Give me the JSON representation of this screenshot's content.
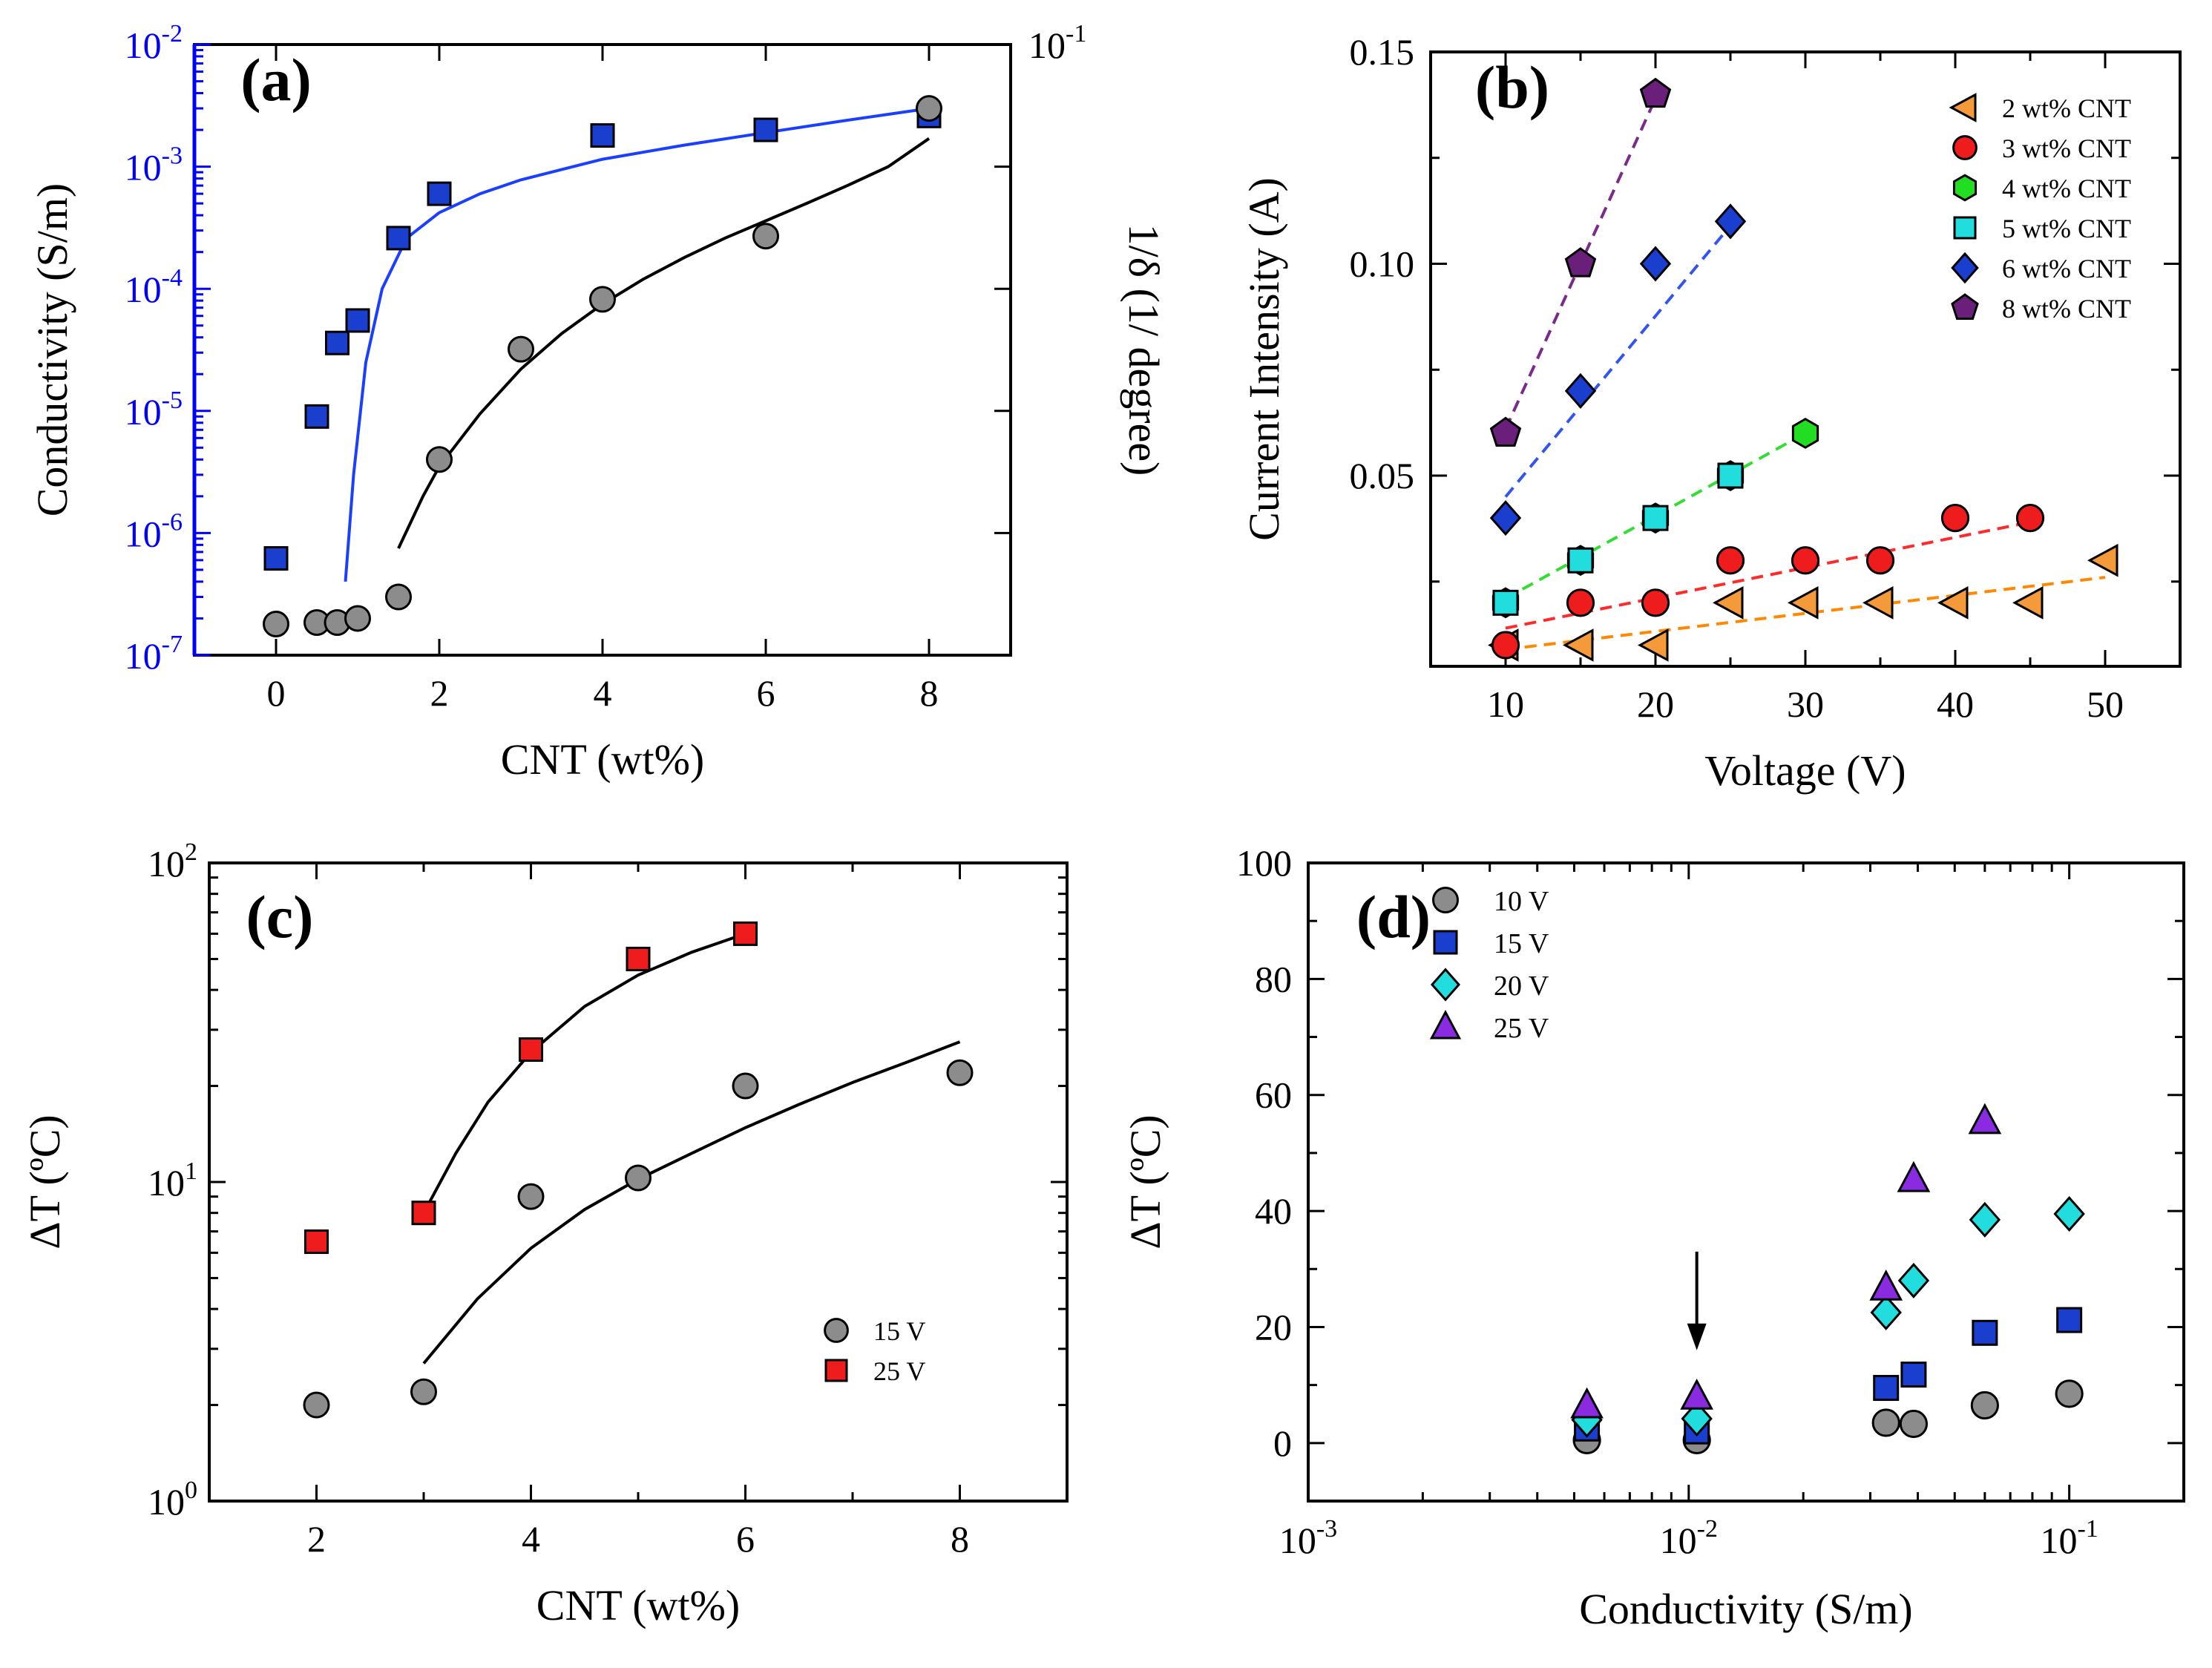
{
  "chart_data": [
    {
      "panel": "(a)",
      "type": "scatter",
      "xlabel": "CNT (wt%)",
      "ylabel": "Conductivity (S/m)",
      "ylabel_right": "1/δ (1/ degree)",
      "xlim": [
        -1,
        9
      ],
      "ylim": [
        1e-07,
        0.01
      ],
      "yscale": "log",
      "ylim_right": [
        1e-07,
        0.1
      ],
      "x_ticks": [
        0,
        2,
        4,
        6,
        8
      ],
      "y_ticks": [
        1e-07,
        1e-06,
        1e-05,
        0.0001,
        0.001,
        0.01
      ],
      "y_tick_labels": [
        [
          "10",
          "-7"
        ],
        [
          "10",
          "-6"
        ],
        [
          "10",
          "-5"
        ],
        [
          "10",
          "-4"
        ],
        [
          "10",
          "-3"
        ],
        [
          "10",
          "-2"
        ]
      ],
      "y_right_tick_labels": [
        [
          "10",
          "-1"
        ]
      ],
      "left_axis_color": "#0000ff",
      "series": [
        {
          "name": "Conductivity",
          "marker": "square",
          "color": "#1a3fcf",
          "points": [
            [
              0,
              6.2e-07
            ],
            [
              0.5,
              9e-06
            ],
            [
              0.75,
              3.6e-05
            ],
            [
              1,
              5.5e-05
            ],
            [
              1.5,
              0.00026
            ],
            [
              2,
              0.0006
            ],
            [
              4,
              0.0018
            ],
            [
              6,
              0.002
            ],
            [
              8,
              0.0026
            ]
          ],
          "fit": [
            [
              0.85,
              4e-07
            ],
            [
              0.95,
              3e-06
            ],
            [
              1.1,
              2.5e-05
            ],
            [
              1.3,
              0.0001
            ],
            [
              1.6,
              0.00026
            ],
            [
              2,
              0.00042
            ],
            [
              2.5,
              0.0006
            ],
            [
              3,
              0.00078
            ],
            [
              4,
              0.00115
            ],
            [
              5,
              0.0015
            ],
            [
              6,
              0.0019
            ],
            [
              7,
              0.0024
            ],
            [
              8,
              0.003
            ]
          ],
          "fit_color": "#1a3fff"
        },
        {
          "name": "1/δ",
          "marker": "circle",
          "color": "#8c8c8c",
          "points": [
            [
              0,
              1.8e-07
            ],
            [
              0.5,
              1.85e-07
            ],
            [
              0.75,
              1.85e-07
            ],
            [
              1,
              2e-07
            ],
            [
              1.5,
              3e-07
            ],
            [
              2,
              4e-06
            ],
            [
              3,
              3.2e-05
            ],
            [
              4,
              8.2e-05
            ],
            [
              6,
              0.00027
            ],
            [
              8,
              0.003
            ]
          ],
          "fit": [
            [
              1.5,
              7.5e-07
            ],
            [
              1.8,
              2e-06
            ],
            [
              2,
              3.5e-06
            ],
            [
              2.5,
              9.5e-06
            ],
            [
              3,
              2.2e-05
            ],
            [
              3.5,
              4.3e-05
            ],
            [
              4,
              7.5e-05
            ],
            [
              4.5,
              0.00012
            ],
            [
              5,
              0.00018
            ],
            [
              5.5,
              0.00026
            ],
            [
              6,
              0.00036
            ],
            [
              6.5,
              0.0005
            ],
            [
              7,
              0.0007
            ],
            [
              7.5,
              0.001
            ],
            [
              8,
              0.0017
            ]
          ],
          "fit_color": "#000000"
        }
      ]
    },
    {
      "panel": "(b)",
      "type": "scatter",
      "xlabel": "Voltage (V)",
      "ylabel": "Current Intensity (A)",
      "xlim": [
        5,
        55
      ],
      "ylim": [
        0.005,
        0.15
      ],
      "x_ticks": [
        10,
        20,
        30,
        40,
        50
      ],
      "x_tick_labels": [
        "10",
        "20",
        "30",
        "40",
        "50"
      ],
      "y_ticks": [
        0.05,
        0.1,
        0.15
      ],
      "y_tick_labels": [
        "0.05",
        "0.10",
        "0.15"
      ],
      "series": [
        {
          "name": "2 wt% CNT",
          "marker": "triangle-left",
          "color": "#f59a3b",
          "line_color": "#ff8800",
          "points": [
            [
              10,
              0.01
            ],
            [
              15,
              0.01
            ],
            [
              20,
              0.01
            ],
            [
              25,
              0.02
            ],
            [
              30,
              0.02
            ],
            [
              35,
              0.02
            ],
            [
              40,
              0.02
            ],
            [
              45,
              0.02
            ],
            [
              50,
              0.03
            ]
          ],
          "fit": [
            [
              10,
              0.009
            ],
            [
              50,
              0.026
            ]
          ]
        },
        {
          "name": "3 wt% CNT",
          "marker": "circle",
          "color": "#ee1c1c",
          "line_color": "#ff2a2a",
          "points": [
            [
              10,
              0.01
            ],
            [
              15,
              0.02
            ],
            [
              20,
              0.02
            ],
            [
              25,
              0.03
            ],
            [
              30,
              0.03
            ],
            [
              35,
              0.03
            ],
            [
              40,
              0.04
            ],
            [
              45,
              0.04
            ]
          ],
          "fit": [
            [
              10,
              0.014
            ],
            [
              45,
              0.039
            ]
          ]
        },
        {
          "name": "4 wt% CNT",
          "marker": "hexagon",
          "color": "#22dd22",
          "line_color": "#33dd33",
          "points": [
            [
              10,
              0.02
            ],
            [
              15,
              0.03
            ],
            [
              20,
              0.04
            ],
            [
              25,
              0.05
            ],
            [
              30,
              0.06
            ]
          ],
          "fit": [
            [
              10,
              0.021
            ],
            [
              30,
              0.06
            ]
          ]
        },
        {
          "name": "5 wt% CNT",
          "marker": "square",
          "color": "#22dddd",
          "line_color": "#22cccc",
          "points": [
            [
              10,
              0.02
            ],
            [
              15,
              0.03
            ],
            [
              20,
              0.04
            ],
            [
              25,
              0.05
            ]
          ],
          "fit": []
        },
        {
          "name": "6 wt% CNT",
          "marker": "diamond",
          "color": "#1a3fcf",
          "line_color": "#3355ee",
          "points": [
            [
              10,
              0.04
            ],
            [
              15,
              0.07
            ],
            [
              20,
              0.1
            ],
            [
              25,
              0.11
            ]
          ],
          "fit": [
            [
              10,
              0.045
            ],
            [
              25,
              0.109
            ]
          ]
        },
        {
          "name": "8 wt% CNT",
          "marker": "pentagon",
          "color": "#6a1f7a",
          "line_color": "#7a2a8a",
          "points": [
            [
              10,
              0.06
            ],
            [
              15,
              0.1
            ],
            [
              20,
              0.14
            ]
          ],
          "fit": [
            [
              10,
              0.061
            ],
            [
              20,
              0.139
            ]
          ]
        }
      ],
      "legend_position": "top-right"
    },
    {
      "panel": "(c)",
      "type": "scatter",
      "xlabel": "CNT (wt%)",
      "ylabel": "ΔT (ºC)",
      "xlim": [
        1,
        9
      ],
      "ylim": [
        1,
        100
      ],
      "yscale": "log",
      "x_ticks": [
        2,
        4,
        6,
        8
      ],
      "x_tick_labels": [
        "2",
        "4",
        "6",
        "8"
      ],
      "y_ticks": [
        1,
        10,
        100
      ],
      "y_tick_labels": [
        [
          "10",
          "0"
        ],
        [
          "10",
          "1"
        ],
        [
          "10",
          "2"
        ]
      ],
      "series": [
        {
          "name": "15 V",
          "marker": "circle",
          "color": "#8c8c8c",
          "points": [
            [
              2,
              2.0
            ],
            [
              3,
              2.2
            ],
            [
              4,
              9.0
            ],
            [
              5,
              10.3
            ],
            [
              6,
              20.0
            ],
            [
              8,
              22.0
            ]
          ],
          "fit": [
            [
              3,
              2.7
            ],
            [
              3.5,
              4.3
            ],
            [
              4,
              6.2
            ],
            [
              4.5,
              8.2
            ],
            [
              5,
              10.2
            ],
            [
              5.5,
              12.3
            ],
            [
              6,
              14.8
            ],
            [
              6.5,
              17.5
            ],
            [
              7,
              20.5
            ],
            [
              7.5,
              23.7
            ],
            [
              8,
              27.5
            ]
          ],
          "fit_color": "#000000"
        },
        {
          "name": "25 V",
          "marker": "square",
          "color": "#ee1c1c",
          "points": [
            [
              2,
              6.5
            ],
            [
              3,
              8.0
            ],
            [
              4,
              26.0
            ],
            [
              5,
              50.0
            ],
            [
              6,
              60.0
            ]
          ],
          "fit": [
            [
              3,
              8.0
            ],
            [
              3.3,
              12.3
            ],
            [
              3.6,
              17.8
            ],
            [
              4,
              25.5
            ],
            [
              4.5,
              35.5
            ],
            [
              5,
              44.5
            ],
            [
              5.5,
              52.5
            ],
            [
              6,
              60.0
            ]
          ],
          "fit_color": "#000000"
        }
      ],
      "legend_position": "bottom-right"
    },
    {
      "panel": "(d)",
      "type": "scatter",
      "xlabel": "Conductivity (S/m)",
      "ylabel": "ΔT (ºC)",
      "xlim": [
        0.001,
        0.2
      ],
      "xscale": "log",
      "ylim": [
        -10,
        100
      ],
      "x_ticks": [
        0.001,
        0.01,
        0.1
      ],
      "x_tick_labels": [
        [
          "10",
          "-3"
        ],
        [
          "10",
          "-2"
        ],
        [
          "10",
          "-1"
        ]
      ],
      "y_ticks": [
        0,
        20,
        40,
        60,
        80,
        100
      ],
      "y_tick_labels": [
        "0",
        "20",
        "40",
        "60",
        "80",
        "100"
      ],
      "annotation": {
        "type": "arrow-down",
        "x": 0.0105,
        "y_from": 33,
        "y_to": 16
      },
      "series": [
        {
          "name": "10 V",
          "marker": "circle",
          "color": "#8c8c8c",
          "points": [
            [
              0.0054,
              0.5
            ],
            [
              0.0105,
              0.5
            ],
            [
              0.033,
              3.5
            ],
            [
              0.039,
              3.3
            ],
            [
              0.06,
              6.5
            ],
            [
              0.1,
              8.5
            ]
          ]
        },
        {
          "name": "15 V",
          "marker": "square",
          "color": "#1a3fcf",
          "points": [
            [
              0.0054,
              2.5
            ],
            [
              0.0105,
              2.0
            ],
            [
              0.033,
              9.5
            ],
            [
              0.039,
              11.8
            ],
            [
              0.06,
              19.0
            ],
            [
              0.1,
              21.2
            ]
          ]
        },
        {
          "name": "20 V",
          "marker": "diamond",
          "color": "#22dddd",
          "points": [
            [
              0.0054,
              4.0
            ],
            [
              0.0105,
              4.2
            ],
            [
              0.033,
              22.5
            ],
            [
              0.039,
              28.0
            ],
            [
              0.06,
              38.5
            ],
            [
              0.1,
              39.5
            ]
          ]
        },
        {
          "name": "25 V",
          "marker": "triangle-up",
          "color": "#8a2be2",
          "points": [
            [
              0.0054,
              6.5
            ],
            [
              0.0105,
              8.0
            ],
            [
              0.033,
              26.8
            ],
            [
              0.039,
              45.5
            ],
            [
              0.06,
              55.5
            ]
          ]
        }
      ],
      "legend_position": "top-left"
    }
  ]
}
